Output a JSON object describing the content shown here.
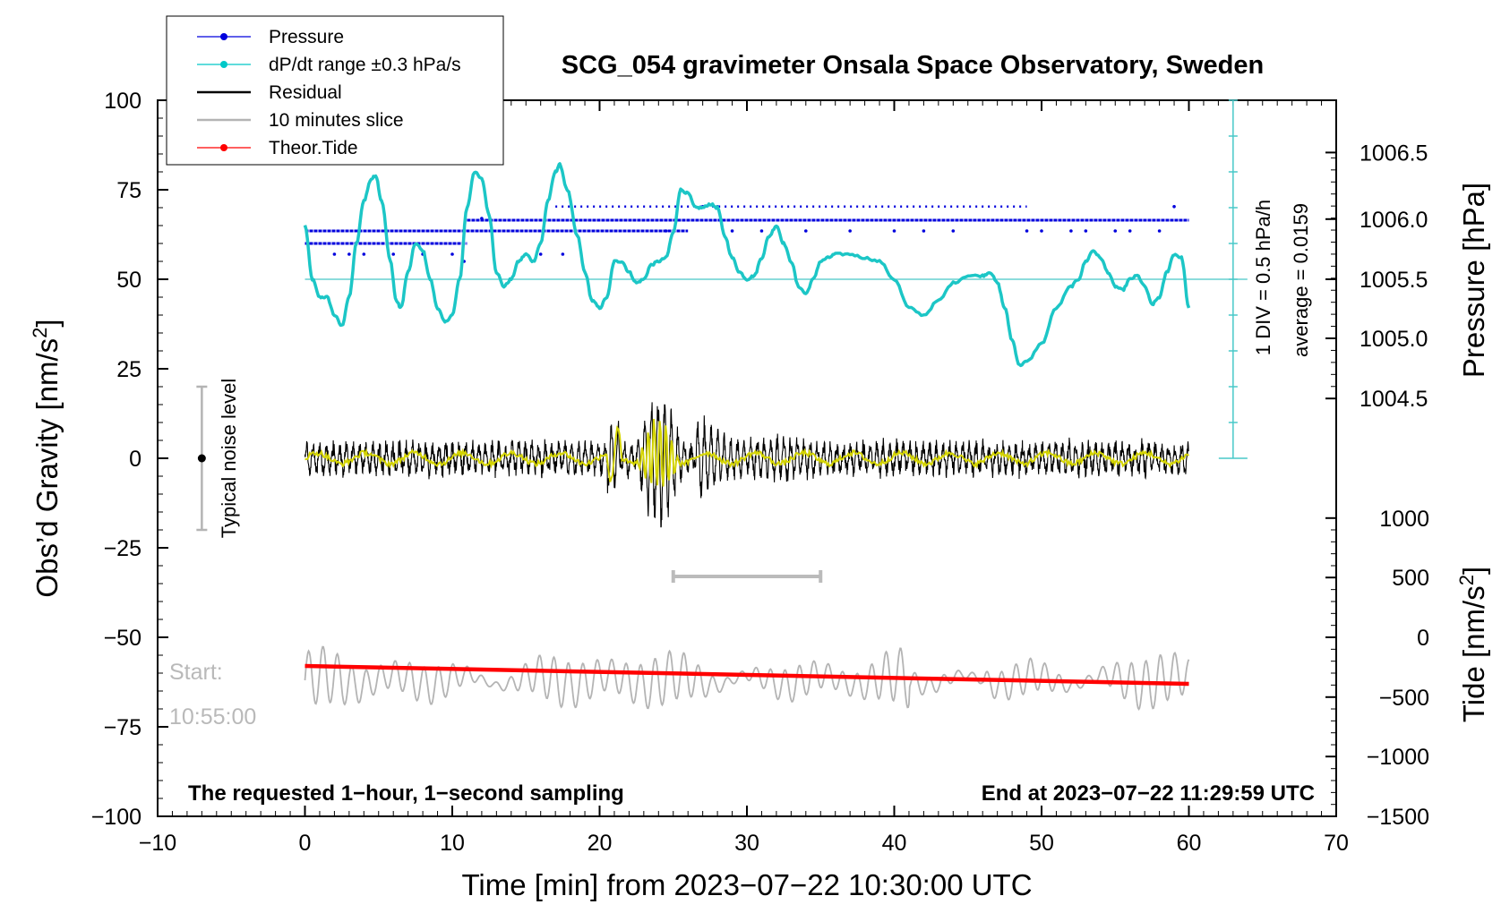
{
  "chart_data": {
    "type": "line",
    "title": "SCG_054 gravimeter Onsala Space Observatory, Sweden",
    "xlabel": "Time [min] from 2023−07−22 10:30:00 UTC",
    "ylabel": "Obs’d Gravity [nm/s²]",
    "ylabel_main": "Obs’d Gravity [nm/s",
    "ylabel_sup": "2",
    "ylabel_end": "]",
    "y2_pressure_label": "Pressure [hPa]",
    "y2_tide_label_main": "Tide [nm/s",
    "y2_tide_label_sup": "2",
    "y2_tide_label_end": "]",
    "xlim": [
      -10,
      70
    ],
    "ylim": [
      -100,
      100
    ],
    "xticks": [
      -10,
      0,
      10,
      20,
      30,
      40,
      50,
      60,
      70
    ],
    "xtick_labels": [
      "−10",
      "0",
      "10",
      "20",
      "30",
      "40",
      "50",
      "60",
      "70"
    ],
    "yticks": [
      100,
      75,
      50,
      25,
      0,
      -25,
      -50,
      -75,
      -100
    ],
    "ytick_labels": [
      "100",
      "75",
      "50",
      "25",
      "0",
      "−25",
      "−50",
      "−75",
      "−100"
    ],
    "pressure_ticks": [
      {
        "value": 1006.5,
        "y": 85.4,
        "label": "1006.5"
      },
      {
        "value": 1006.0,
        "y": 66.8,
        "label": "1006.0"
      },
      {
        "value": 1005.5,
        "y": 50.0,
        "label": "1005.5"
      },
      {
        "value": 1005.0,
        "y": 33.5,
        "label": "1005.0"
      },
      {
        "value": 1004.5,
        "y": 16.7,
        "label": "1004.5"
      }
    ],
    "tide_ticks": [
      {
        "value": 1000,
        "y": -16.7,
        "label": "1000"
      },
      {
        "value": 500,
        "y": -33.3,
        "label": "500"
      },
      {
        "value": 0,
        "y": -50.0,
        "label": "0"
      },
      {
        "value": -500,
        "y": -66.7,
        "label": "−500"
      },
      {
        "value": -1000,
        "y": -83.3,
        "label": "−1000"
      },
      {
        "value": -1500,
        "y": -100.0,
        "label": "−1500"
      }
    ],
    "legend": [
      {
        "label": "Pressure",
        "color": "#0000dd",
        "marker": true
      },
      {
        "label": "dP/dt range ±0.3 hPa/s",
        "color": "#00c8c8",
        "marker": true
      },
      {
        "label": "Residual",
        "color": "#000000",
        "marker": false
      },
      {
        "label": "10 minutes slice",
        "color": "#b4b4b4",
        "marker": false
      },
      {
        "label": "Theor.Tide",
        "color": "#ff0000",
        "marker": true
      }
    ],
    "series": [
      {
        "name": "dP/dt (cyan curve, plotted in gravity units)",
        "color": "#1cc6c6",
        "x": [
          0,
          0.5,
          1.0,
          1.5,
          2.0,
          2.5,
          3.0,
          3.5,
          4.0,
          4.5,
          4.8,
          5.2,
          5.8,
          6.2,
          6.5,
          7.0,
          7.5,
          8.0,
          8.5,
          9.0,
          9.5,
          10.0,
          10.5,
          11.0,
          11.5,
          12.0,
          12.5,
          13.0,
          13.5,
          14.0,
          14.5,
          15.0,
          15.5,
          16.0,
          16.5,
          17.0,
          17.3,
          17.8,
          18.5,
          19.0,
          19.5,
          20.0,
          20.5,
          21.0,
          21.5,
          22.0,
          22.5,
          23.0,
          23.5,
          24.0,
          24.5,
          25.0,
          25.5,
          26.0,
          26.5,
          27.0,
          27.5,
          28.0,
          28.5,
          29.0,
          29.5,
          30.0,
          30.5,
          31.0,
          31.5,
          32.0,
          32.5,
          33.0,
          33.5,
          34.0,
          34.5,
          35.0,
          35.5,
          36.0,
          37.0,
          38.0,
          39.0,
          40.0,
          41.0,
          42.0,
          43.0,
          44.0,
          45.0,
          46.0,
          46.5,
          47.0,
          47.5,
          48.0,
          48.5,
          49.0,
          50.0,
          51.0,
          52.0,
          52.5,
          53.0,
          53.5,
          54.0,
          54.5,
          55.0,
          55.5,
          56.0,
          56.5,
          57.0,
          57.5,
          58.0,
          58.5,
          59.0,
          59.5,
          60.0
        ],
        "values": [
          65,
          50,
          45,
          45,
          40,
          37,
          45,
          60,
          72,
          78,
          79,
          72,
          55,
          44,
          42,
          52,
          60,
          58,
          50,
          42,
          38,
          40,
          50,
          70,
          80,
          78,
          68,
          52,
          48,
          50,
          55,
          57,
          55,
          60,
          72,
          80,
          82,
          75,
          62,
          52,
          44,
          42,
          45,
          55,
          55,
          52,
          49,
          50,
          54,
          55,
          56,
          63,
          75,
          74,
          70,
          70,
          71,
          70,
          62,
          56,
          52,
          50,
          51,
          56,
          62,
          65,
          60,
          55,
          48,
          46,
          50,
          55,
          56,
          57,
          57,
          56,
          55,
          50,
          42,
          40,
          44,
          49,
          51,
          51,
          52,
          49,
          42,
          33,
          26,
          27,
          32,
          42,
          48,
          50,
          55,
          58,
          56,
          52,
          48,
          47,
          50,
          51,
          48,
          43,
          45,
          52,
          57,
          56,
          42
        ]
      },
      {
        "name": "Pressure (blue dotted levels)",
        "color": "#0000dd",
        "segments": [
          {
            "x0": 0,
            "x1": 26,
            "y": 63.5
          },
          {
            "x0": 0,
            "x1": 11,
            "y": 60
          },
          {
            "x0": 11,
            "x1": 60,
            "y": 66.5
          },
          {
            "x0": 17,
            "x1": 49,
            "y": 70.3
          }
        ]
      },
      {
        "name": "Residual",
        "color": "#000000",
        "baseline": 0,
        "typical_amplitude": 4,
        "burst_window_min": [
          22.5,
          26.5
        ],
        "burst_peak_amplitude": 21
      },
      {
        "name": "Residual (filtered, yellow)",
        "color": "#d4d400",
        "baseline": 0
      },
      {
        "name": "10 minutes slice",
        "color": "#b4b4b4",
        "x_range": [
          0,
          60
        ],
        "center": -62,
        "amplitude": 8
      },
      {
        "name": "Theor.Tide",
        "color": "#ff0000",
        "x": [
          0,
          60
        ],
        "values": [
          -58,
          -63
        ]
      }
    ],
    "slice_marker": {
      "x0": 25,
      "x1": 35,
      "y": -33
    },
    "noise_bar": {
      "x": -7,
      "y_center": 0,
      "y_low": -20,
      "y_high": 20,
      "label": "Typical noise level"
    },
    "dpdt_ruler": {
      "x": 63,
      "y_top": 100,
      "y_bottom": 0,
      "divisions": 10,
      "ref_line_y": 50,
      "label1": "1 DIV = 0.5 hPa/h",
      "label2": "average = 0.0159"
    },
    "annotations": {
      "start_label": "Start:",
      "start_time": "10:55:00",
      "bottom_left": "The requested 1−hour, 1−second sampling",
      "bottom_right": "End at 2023−07−22 11:29:59 UTC"
    }
  }
}
